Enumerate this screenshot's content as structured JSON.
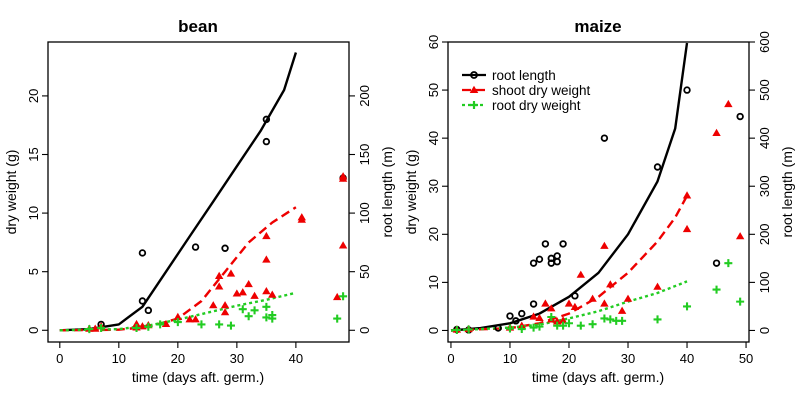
{
  "legend": {
    "items": [
      {
        "key": "root_length",
        "label": "root length",
        "color": "#000000",
        "marker": "circle"
      },
      {
        "key": "shoot_dry_weight",
        "label": "shoot dry weight",
        "color": "#ee0000",
        "marker": "triangle"
      },
      {
        "key": "root_dry_weight",
        "label": "root dry weight",
        "color": "#22cc22",
        "marker": "plus"
      }
    ]
  },
  "chart_data": [
    {
      "type": "scatter",
      "title": "bean",
      "xlabel": "time (days aft. germ.)",
      "ylabel": "dry weight (g)",
      "y2label": "root length (m)",
      "xlim": [
        -2,
        49
      ],
      "ylim": [
        -1,
        24.6
      ],
      "y2lim": [
        -10,
        246
      ],
      "xticks": [
        "0",
        "10",
        "20",
        "30",
        "40"
      ],
      "yticks": [
        "0",
        "5",
        "10",
        "15",
        "20"
      ],
      "y2ticks": [
        "0",
        "50",
        "100",
        "150",
        "200"
      ],
      "series": [
        {
          "name": "root length",
          "key": "root_length",
          "axis": "right",
          "points": [
            [
              7,
              5
            ],
            [
              14,
              25
            ],
            [
              14,
              66
            ],
            [
              15,
              17
            ],
            [
              23,
              71
            ],
            [
              28,
              70
            ],
            [
              35,
              180
            ],
            [
              35,
              161
            ],
            [
              48,
              130
            ]
          ],
          "curve": [
            [
              0,
              0
            ],
            [
              5,
              1
            ],
            [
              10,
              5
            ],
            [
              14,
              20
            ],
            [
              18,
              50
            ],
            [
              22,
              80
            ],
            [
              26,
              110
            ],
            [
              30,
              140
            ],
            [
              34,
              170
            ],
            [
              38,
              205
            ],
            [
              40,
              237
            ]
          ]
        },
        {
          "name": "shoot dry weight",
          "key": "shoot_dry_weight",
          "axis": "left",
          "points": [
            [
              5,
              0.1
            ],
            [
              6,
              0.1
            ],
            [
              7,
              0.3
            ],
            [
              13,
              0.2
            ],
            [
              13,
              0.5
            ],
            [
              14,
              0.3
            ],
            [
              15,
              0.4
            ],
            [
              18,
              0.5
            ],
            [
              20,
              1.1
            ],
            [
              22,
              0.9
            ],
            [
              23,
              0.9
            ],
            [
              26,
              2.1
            ],
            [
              27,
              4.6
            ],
            [
              27,
              3.7
            ],
            [
              28,
              2.1
            ],
            [
              28,
              1.5
            ],
            [
              29,
              4.8
            ],
            [
              30,
              3.1
            ],
            [
              31,
              3.2
            ],
            [
              32,
              3.9
            ],
            [
              33,
              2.9
            ],
            [
              35,
              8.0
            ],
            [
              35,
              6.0
            ],
            [
              35,
              3.3
            ],
            [
              36,
              3.0
            ],
            [
              41,
              9.4
            ],
            [
              41,
              9.6
            ],
            [
              47,
              2.8
            ],
            [
              48,
              13.1
            ],
            [
              48,
              12.9
            ],
            [
              48,
              7.2
            ]
          ],
          "curve": [
            [
              0,
              0
            ],
            [
              10,
              0.05
            ],
            [
              15,
              0.3
            ],
            [
              20,
              1.0
            ],
            [
              24,
              2.5
            ],
            [
              28,
              5.0
            ],
            [
              32,
              7.5
            ],
            [
              36,
              9.2
            ],
            [
              40,
              10.5
            ]
          ]
        },
        {
          "name": "root dry weight",
          "key": "root_dry_weight",
          "axis": "left",
          "points": [
            [
              5,
              0.1
            ],
            [
              7,
              0.2
            ],
            [
              13,
              0.2
            ],
            [
              15,
              0.3
            ],
            [
              17,
              0.5
            ],
            [
              20,
              0.7
            ],
            [
              24,
              0.5
            ],
            [
              27,
              0.5
            ],
            [
              29,
              0.4
            ],
            [
              31,
              1.8
            ],
            [
              32,
              1.2
            ],
            [
              33,
              1.7
            ],
            [
              35,
              1.1
            ],
            [
              35,
              2.0
            ],
            [
              36,
              1.0
            ],
            [
              36,
              1.3
            ],
            [
              47,
              1.0
            ],
            [
              48,
              2.9
            ]
          ],
          "curve": [
            [
              0,
              0
            ],
            [
              10,
              0.1
            ],
            [
              15,
              0.4
            ],
            [
              20,
              0.9
            ],
            [
              25,
              1.5
            ],
            [
              30,
              2.1
            ],
            [
              35,
              2.6
            ],
            [
              40,
              3.2
            ]
          ]
        }
      ]
    },
    {
      "type": "scatter",
      "title": "maize",
      "xlabel": "time (days aft. germ.)",
      "ylabel": "dry weight (g)",
      "y2label": "root length (m)",
      "xlim": [
        -0.5,
        50.5
      ],
      "ylim": [
        -2.4,
        60
      ],
      "y2lim": [
        -24,
        600
      ],
      "xticks": [
        "0",
        "10",
        "20",
        "30",
        "40",
        "50"
      ],
      "yticks": [
        "0",
        "10",
        "20",
        "30",
        "40",
        "50",
        "60"
      ],
      "y2ticks": [
        "0",
        "100",
        "200",
        "300",
        "400",
        "500",
        "600"
      ],
      "series": [
        {
          "name": "root length",
          "key": "root_length",
          "axis": "right",
          "points": [
            [
              1,
              2
            ],
            [
              3,
              1
            ],
            [
              8,
              5
            ],
            [
              10,
              30
            ],
            [
              11,
              20
            ],
            [
              12,
              35
            ],
            [
              14,
              55
            ],
            [
              14,
              140
            ],
            [
              15,
              148
            ],
            [
              16,
              180
            ],
            [
              17,
              140
            ],
            [
              17,
              150
            ],
            [
              18,
              143
            ],
            [
              18,
              155
            ],
            [
              19,
              180
            ],
            [
              21,
              72
            ],
            [
              26,
              400
            ],
            [
              35,
              340
            ],
            [
              40,
              500
            ],
            [
              45,
              140
            ],
            [
              49,
              445
            ]
          ],
          "curve": [
            [
              0,
              0
            ],
            [
              5,
              5
            ],
            [
              10,
              15
            ],
            [
              15,
              35
            ],
            [
              20,
              70
            ],
            [
              25,
              120
            ],
            [
              30,
              200
            ],
            [
              35,
              310
            ],
            [
              38,
              420
            ],
            [
              40,
              598
            ]
          ]
        },
        {
          "name": "shoot dry weight",
          "key": "shoot_dry_weight",
          "axis": "left",
          "points": [
            [
              1,
              0.1
            ],
            [
              3,
              0.2
            ],
            [
              10,
              0.5
            ],
            [
              12,
              0.9
            ],
            [
              14,
              2.8
            ],
            [
              15,
              2.5
            ],
            [
              16,
              5.5
            ],
            [
              17,
              4.5
            ],
            [
              17,
              2.2
            ],
            [
              18,
              1.8
            ],
            [
              19,
              2.0
            ],
            [
              20,
              5.5
            ],
            [
              21,
              4.8
            ],
            [
              22,
              11.5
            ],
            [
              24,
              6.5
            ],
            [
              26,
              17.5
            ],
            [
              26,
              5.5
            ],
            [
              27,
              9.5
            ],
            [
              29,
              4.0
            ],
            [
              30,
              6.5
            ],
            [
              35,
              9.0
            ],
            [
              40,
              28.0
            ],
            [
              40,
              21.0
            ],
            [
              45,
              41.0
            ],
            [
              47,
              47.0
            ],
            [
              49,
              19.5
            ]
          ],
          "curve": [
            [
              0,
              0
            ],
            [
              10,
              0.5
            ],
            [
              15,
              1.5
            ],
            [
              20,
              3.5
            ],
            [
              25,
              7.0
            ],
            [
              30,
              12.0
            ],
            [
              35,
              18.5
            ],
            [
              38,
              23.5
            ],
            [
              40,
              28.0
            ]
          ]
        },
        {
          "name": "root dry weight",
          "key": "root_dry_weight",
          "axis": "left",
          "points": [
            [
              1,
              0.1
            ],
            [
              3,
              0.2
            ],
            [
              10,
              0.4
            ],
            [
              12,
              0.3
            ],
            [
              14,
              0.6
            ],
            [
              15,
              0.8
            ],
            [
              17,
              2.8
            ],
            [
              18,
              1.0
            ],
            [
              19,
              1.0
            ],
            [
              20,
              1.5
            ],
            [
              22,
              1.0
            ],
            [
              24,
              1.3
            ],
            [
              26,
              2.5
            ],
            [
              27,
              2.3
            ],
            [
              28,
              2.0
            ],
            [
              29,
              2.0
            ],
            [
              35,
              2.3
            ],
            [
              40,
              5.0
            ],
            [
              45,
              8.5
            ],
            [
              47,
              14.0
            ],
            [
              49,
              6.0
            ]
          ],
          "curve": [
            [
              0,
              0
            ],
            [
              10,
              0.6
            ],
            [
              15,
              1.2
            ],
            [
              20,
              2.5
            ],
            [
              25,
              4.0
            ],
            [
              30,
              6.0
            ],
            [
              35,
              7.8
            ],
            [
              40,
              10.2
            ]
          ]
        }
      ]
    }
  ]
}
